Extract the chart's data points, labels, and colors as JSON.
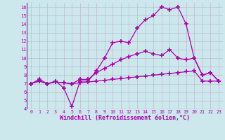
{
  "background_color": "#cce8ec",
  "line_color": "#aa00aa",
  "grid_color": "#bbbbcc",
  "xlabel": "Windchill (Refroidissement éolien,°C)",
  "xlim": [
    -0.5,
    23.5
  ],
  "ylim": [
    4,
    16.5
  ],
  "xticks": [
    0,
    1,
    2,
    3,
    4,
    5,
    6,
    7,
    8,
    9,
    10,
    11,
    12,
    13,
    14,
    15,
    16,
    17,
    18,
    19,
    20,
    21,
    22,
    23
  ],
  "yticks": [
    4,
    5,
    6,
    7,
    8,
    9,
    10,
    11,
    12,
    13,
    14,
    15,
    16
  ],
  "series": [
    {
      "x": [
        0,
        1,
        2,
        3,
        4,
        5,
        6,
        7,
        8,
        9,
        10,
        11,
        12,
        13,
        14,
        15,
        16,
        17,
        18,
        19,
        20,
        21,
        22,
        23
      ],
      "y": [
        7.0,
        7.3,
        7.0,
        7.2,
        7.1,
        7.0,
        7.1,
        7.2,
        7.3,
        7.4,
        7.5,
        7.6,
        7.7,
        7.8,
        7.9,
        8.0,
        8.1,
        8.2,
        8.3,
        8.4,
        8.5,
        7.3,
        7.3,
        7.3
      ]
    },
    {
      "x": [
        0,
        1,
        2,
        3,
        4,
        5,
        6,
        7,
        8,
        9,
        10,
        11,
        12,
        13,
        14,
        15,
        16,
        17,
        18,
        19,
        20,
        21,
        22,
        23
      ],
      "y": [
        7.0,
        7.3,
        7.0,
        7.2,
        7.1,
        7.0,
        7.5,
        7.5,
        8.3,
        8.8,
        9.3,
        9.8,
        10.2,
        10.5,
        10.8,
        10.5,
        10.3,
        11.0,
        10.0,
        9.8,
        10.0,
        8.0,
        8.3,
        7.3
      ]
    },
    {
      "x": [
        0,
        1,
        2,
        3,
        4,
        5,
        6,
        7,
        8,
        9,
        10,
        11,
        12,
        13,
        14,
        15,
        16,
        17,
        18,
        19,
        20,
        21,
        22,
        23
      ],
      "y": [
        7.0,
        7.5,
        7.0,
        7.3,
        6.5,
        4.3,
        7.3,
        7.3,
        8.5,
        10.0,
        11.8,
        12.0,
        11.8,
        13.5,
        14.5,
        15.0,
        16.0,
        15.7,
        16.0,
        14.0,
        10.0,
        8.0,
        8.3,
        7.3
      ]
    }
  ],
  "marker": "+",
  "markersize": 4,
  "linewidth": 0.9,
  "markeredgewidth": 1.2
}
